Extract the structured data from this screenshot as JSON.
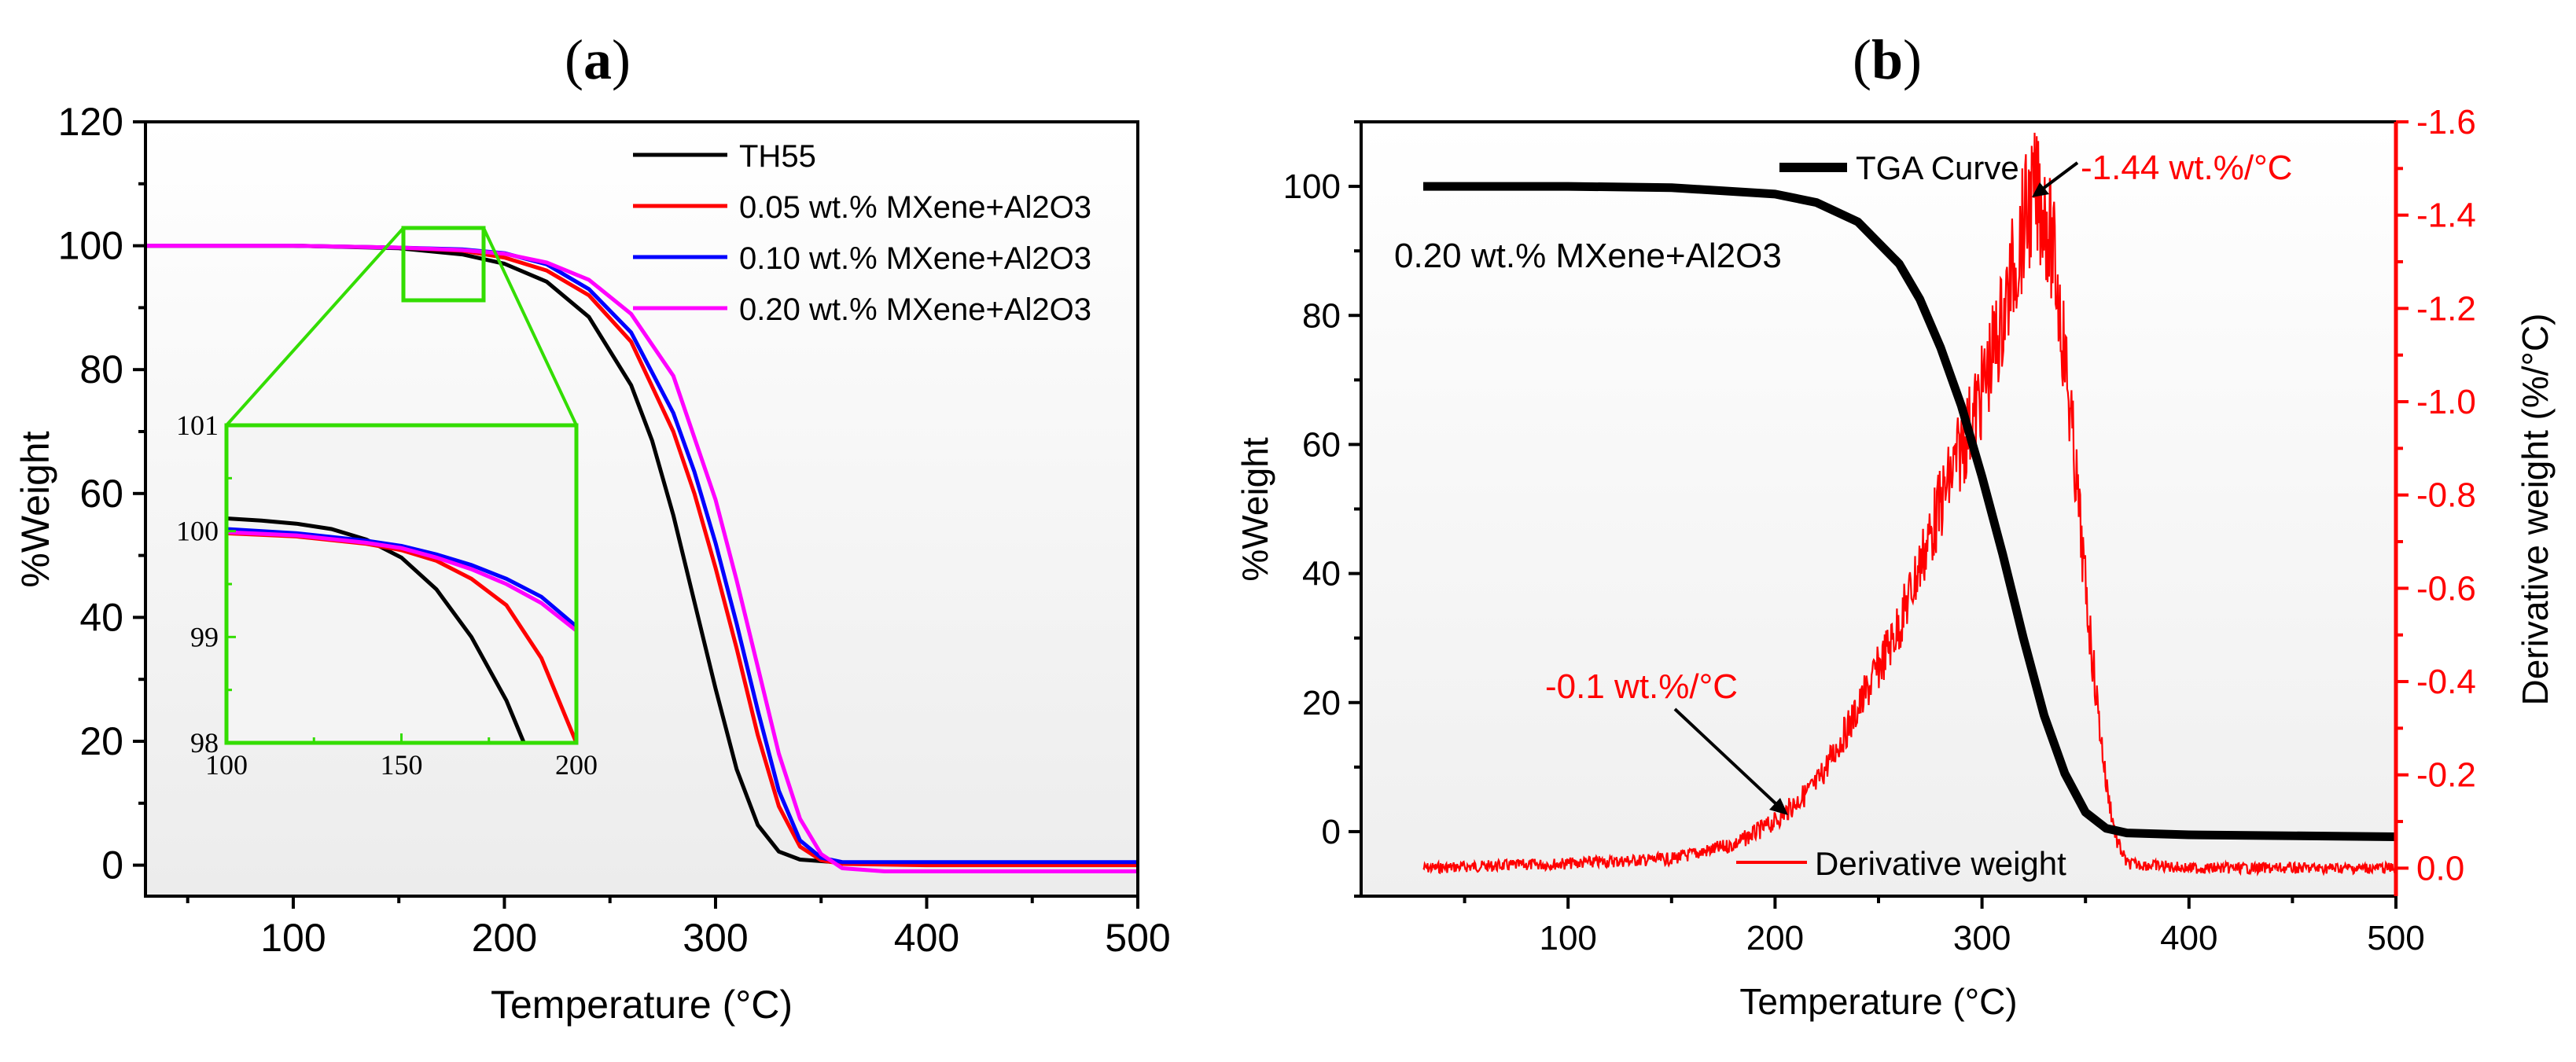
{
  "panels": {
    "a": {
      "label_text": "(a)",
      "label_open": "(",
      "label_letter": "a",
      "label_close": ")",
      "xlabel": "Temperature (°C)",
      "ylabel": "%Weight",
      "xlim": [
        30,
        500
      ],
      "ylim": [
        -5,
        120
      ],
      "xticks": [
        "100",
        "200",
        "300",
        "400",
        "500"
      ],
      "yticks": [
        "0",
        "20",
        "40",
        "60",
        "80",
        "100",
        "120"
      ],
      "series_colors": [
        "#000000",
        "#ff0000",
        "#0000ff",
        "#ff00ff"
      ],
      "legend": [
        "TH55",
        "0.05 wt.% MXene+Al2O3",
        "0.10 wt.% MXene+Al2O3",
        "0.20 wt.% MXene+Al2O3"
      ],
      "zoom_box_color": "#33dd00",
      "inset": {
        "xlim": [
          100,
          200
        ],
        "ylim": [
          98,
          101
        ],
        "xticks": [
          "100",
          "150",
          "200"
        ],
        "yticks": [
          "98",
          "99",
          "100",
          "101"
        ]
      }
    },
    "b": {
      "label_text": "(b)",
      "label_open": "(",
      "label_letter": "b",
      "label_close": ")",
      "xlabel": "Temperature (°C)",
      "ylabel_left": "%Weight",
      "ylabel_right": "Derivative weight (%/°C)",
      "xlim": [
        0,
        500
      ],
      "ylim_left": [
        -10,
        110
      ],
      "ylim_right": [
        0.06,
        -1.6
      ],
      "xticks": [
        "100",
        "200",
        "300",
        "400",
        "500"
      ],
      "yticks_left": [
        "0",
        "20",
        "40",
        "60",
        "80",
        "100"
      ],
      "yticks_right": [
        "0.0",
        "-0.2",
        "-0.4",
        "-0.6",
        "-0.8",
        "-1.0",
        "-1.2",
        "-1.4",
        "-1.6"
      ],
      "sample_label": "0.20 wt.% MXene+Al2O3",
      "legend_tga": "TGA Curve",
      "legend_deriv": "Derivative weight",
      "annotation_peak": "-1.44 wt.%/°C",
      "annotation_onset": "-0.1 wt.%/°C",
      "tga_color": "#000000",
      "deriv_color": "#ff0000"
    }
  },
  "chart_data": [
    {
      "type": "line",
      "panel": "a",
      "title": "(a)",
      "xlabel": "Temperature (°C)",
      "ylabel": "%Weight",
      "xlim": [
        30,
        500
      ],
      "ylim": [
        -5,
        120
      ],
      "series": [
        {
          "name": "TH55",
          "x": [
            30,
            100,
            150,
            180,
            200,
            220,
            240,
            260,
            270,
            280,
            290,
            300,
            310,
            320,
            330,
            340,
            360,
            400,
            500
          ],
          "values": [
            100,
            100,
            99.6,
            98.6,
            97.1,
            94.2,
            88.5,
            77.5,
            68.5,
            56.5,
            42.5,
            28.5,
            15.5,
            6.5,
            2.2,
            0.9,
            0.4,
            0.3,
            0.3
          ]
        },
        {
          "name": "0.05 wt.% MXene+Al2O3",
          "x": [
            30,
            100,
            150,
            180,
            200,
            220,
            240,
            260,
            280,
            290,
            300,
            310,
            320,
            330,
            340,
            350,
            360,
            400,
            500
          ],
          "values": [
            100,
            100,
            99.7,
            99.2,
            98.1,
            96.0,
            92.0,
            84.5,
            70.0,
            60.0,
            48.0,
            35.0,
            21.0,
            9.5,
            3.0,
            0.8,
            0.2,
            0.0,
            0.0
          ]
        },
        {
          "name": "0.10 wt.% MXene+Al2O3",
          "x": [
            30,
            100,
            150,
            180,
            200,
            220,
            240,
            260,
            280,
            290,
            300,
            310,
            320,
            330,
            340,
            350,
            360,
            400,
            500
          ],
          "values": [
            100,
            100,
            99.7,
            99.4,
            98.8,
            97.0,
            93.0,
            86.0,
            73.0,
            63.5,
            52.0,
            39.0,
            25.0,
            12.0,
            4.0,
            1.2,
            0.5,
            0.5,
            0.5
          ]
        },
        {
          "name": "0.20 wt.% MXene+Al2O3",
          "x": [
            30,
            100,
            150,
            180,
            200,
            220,
            240,
            260,
            280,
            300,
            310,
            320,
            330,
            340,
            350,
            360,
            380,
            400,
            500
          ],
          "values": [
            100,
            100,
            99.7,
            99.3,
            98.7,
            97.3,
            94.5,
            89.0,
            79.0,
            59.0,
            46.0,
            32.0,
            18.0,
            7.5,
            1.8,
            -0.5,
            -1.0,
            -1.0,
            -1.0
          ]
        }
      ],
      "inset": {
        "xlim": [
          100,
          200
        ],
        "ylim": [
          98,
          101
        ],
        "series": [
          {
            "name": "TH55",
            "x": [
              100,
              110,
              120,
              130,
              140,
              150,
              160,
              170,
              180,
              185
            ],
            "values": [
              100.12,
              100.1,
              100.07,
              100.02,
              99.92,
              99.75,
              99.45,
              99.0,
              98.4,
              98.0
            ]
          },
          {
            "name": "0.05 wt.% MXene+Al2O3",
            "x": [
              100,
              120,
              140,
              150,
              160,
              170,
              180,
              190,
              200
            ],
            "values": [
              99.98,
              99.95,
              99.88,
              99.82,
              99.72,
              99.55,
              99.3,
              98.8,
              98.0
            ]
          },
          {
            "name": "0.10 wt.% MXene+Al2O3",
            "x": [
              100,
              120,
              140,
              150,
              160,
              170,
              180,
              190,
              200
            ],
            "values": [
              100.02,
              99.98,
              99.91,
              99.86,
              99.78,
              99.68,
              99.55,
              99.38,
              99.1
            ]
          },
          {
            "name": "0.20 wt.% MXene+Al2O3",
            "x": [
              100,
              120,
              140,
              150,
              160,
              170,
              180,
              190,
              200
            ],
            "values": [
              99.99,
              99.96,
              99.89,
              99.84,
              99.75,
              99.64,
              99.5,
              99.32,
              99.06
            ]
          }
        ]
      }
    },
    {
      "type": "line",
      "panel": "b",
      "title": "(b)",
      "xlabel": "Temperature (°C)",
      "ylabel": "%Weight",
      "ylabel_right": "Derivative weight (%/°C)",
      "xlim": [
        0,
        500
      ],
      "ylim": [
        -10,
        110
      ],
      "ylim_right": [
        0.06,
        -1.6
      ],
      "series": [
        {
          "name": "TGA Curve",
          "axis": "left",
          "x": [
            30,
            100,
            150,
            200,
            220,
            240,
            260,
            270,
            280,
            290,
            300,
            310,
            320,
            330,
            340,
            350,
            360,
            370,
            400,
            500
          ],
          "values": [
            100,
            100,
            99.8,
            98.8,
            97.5,
            94.5,
            88.0,
            82.5,
            75.0,
            66.0,
            55.0,
            43.0,
            30.0,
            18.0,
            9.0,
            3.0,
            0.5,
            -0.2,
            -0.5,
            -0.8
          ]
        },
        {
          "name": "Derivative weight",
          "axis": "right",
          "x": [
            30,
            100,
            150,
            180,
            200,
            220,
            240,
            260,
            280,
            300,
            310,
            320,
            325,
            330,
            335,
            340,
            345,
            350,
            355,
            360,
            365,
            370,
            400,
            500
          ],
          "values": [
            0.0,
            -0.01,
            -0.02,
            -0.05,
            -0.1,
            -0.18,
            -0.34,
            -0.52,
            -0.78,
            -1.02,
            -1.18,
            -1.38,
            -1.44,
            -1.42,
            -1.3,
            -1.1,
            -0.86,
            -0.6,
            -0.38,
            -0.18,
            -0.06,
            -0.01,
            0.0,
            0.0
          ]
        }
      ],
      "annotations": [
        "-1.44 wt.%/°C",
        "-0.1 wt.%/°C"
      ]
    }
  ]
}
